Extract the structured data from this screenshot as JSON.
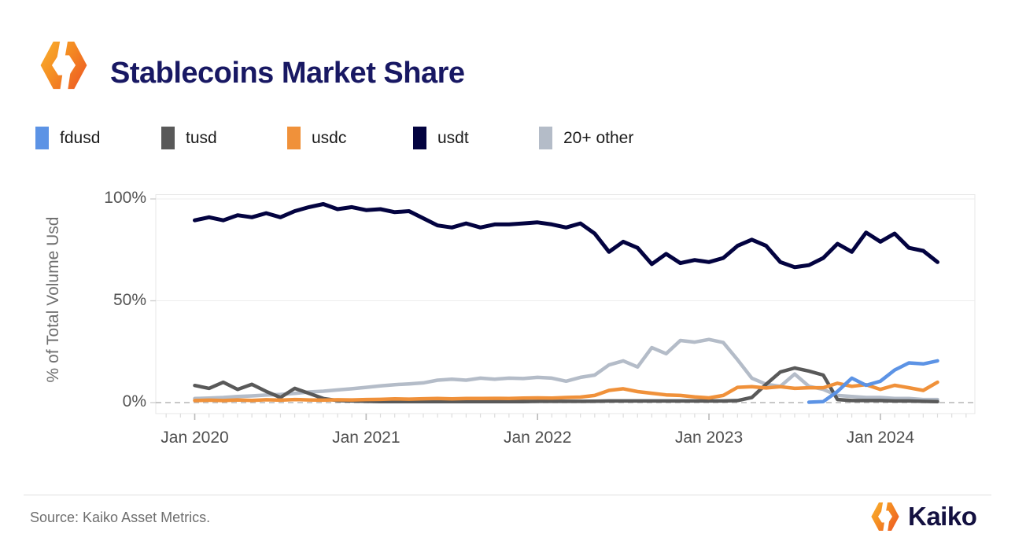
{
  "header": {
    "title": "Stablecoins Market Share"
  },
  "brand": {
    "icon": "kaiko-hexagon-icon"
  },
  "legend": [
    {
      "label": "fdusd",
      "color": "#5c93e5"
    },
    {
      "label": "tusd",
      "color": "#595959"
    },
    {
      "label": "usdc",
      "color": "#f0913a"
    },
    {
      "label": "usdt",
      "color": "#030340"
    },
    {
      "label": "20+ other",
      "color": "#b4bcc8"
    }
  ],
  "chart_data": {
    "type": "line",
    "title": "Stablecoins Market Share",
    "xlabel": "",
    "ylabel": "% of Total Volume Usd",
    "ylim": [
      0,
      100
    ],
    "yticks": [
      "0%",
      "50%",
      "100%"
    ],
    "xticks": [
      "Jan 2020",
      "Jan 2021",
      "Jan 2022",
      "Jan 2023",
      "Jan 2024"
    ],
    "x_start": "2020-01",
    "x_end": "2024-05",
    "x_step": "month",
    "grid": "horizontal, zero line dashed",
    "legend_position": "top",
    "series": [
      {
        "name": "fdusd",
        "color": "#5c93e5",
        "values": [
          null,
          null,
          null,
          null,
          null,
          null,
          null,
          null,
          null,
          null,
          null,
          null,
          null,
          null,
          null,
          null,
          null,
          null,
          null,
          null,
          null,
          null,
          null,
          null,
          null,
          null,
          null,
          null,
          null,
          null,
          null,
          null,
          null,
          null,
          null,
          null,
          null,
          null,
          null,
          null,
          null,
          null,
          null,
          0.2,
          0.5,
          5.5,
          12,
          8.5,
          10.5,
          16,
          19.5,
          19,
          20.5
        ]
      },
      {
        "name": "tusd",
        "color": "#595959",
        "values": [
          8.4,
          7,
          10,
          6.5,
          9,
          5.5,
          2.5,
          7,
          4.5,
          2,
          1,
          0.8,
          0.6,
          0.5,
          0.5,
          0.5,
          0.5,
          0.5,
          0.5,
          0.5,
          0.5,
          0.5,
          0.5,
          0.5,
          0.6,
          0.6,
          0.6,
          0.6,
          0.7,
          0.8,
          0.8,
          0.8,
          0.8,
          0.8,
          0.8,
          0.8,
          0.8,
          0.8,
          1,
          2.5,
          9,
          15,
          17,
          15.5,
          13.5,
          1.5,
          1,
          1,
          1,
          0.8,
          0.8,
          0.6,
          0.5
        ]
      },
      {
        "name": "usdc",
        "color": "#f0913a",
        "values": [
          1,
          1.2,
          1,
          1.3,
          1.1,
          1.4,
          1.2,
          1.5,
          1.3,
          1.2,
          1.4,
          1.3,
          1.5,
          1.6,
          1.8,
          1.7,
          1.9,
          2,
          1.8,
          2,
          2,
          2.1,
          2,
          2.2,
          2.3,
          2.2,
          2.5,
          2.7,
          3.5,
          6,
          6.8,
          5.4,
          4.6,
          3.8,
          3.5,
          2.8,
          2.3,
          3.5,
          7.5,
          7.8,
          7.2,
          7.8,
          7,
          7.3,
          7.3,
          9.5,
          8,
          8.8,
          6.5,
          8.5,
          7.3,
          6,
          10
        ]
      },
      {
        "name": "usdt",
        "color": "#030340",
        "values": [
          89.5,
          91,
          89.5,
          92,
          91,
          93,
          91,
          94,
          96,
          97.5,
          95,
          96,
          94.5,
          95,
          93.5,
          94,
          90.5,
          87,
          86,
          88,
          86,
          87.5,
          87.5,
          88,
          88.5,
          87.5,
          86,
          88,
          83,
          74,
          79,
          76,
          68,
          73,
          68.5,
          70,
          69,
          71,
          77,
          80,
          77,
          69,
          66.5,
          67.5,
          71,
          78,
          74,
          83.5,
          79,
          83,
          76,
          74.5,
          69
        ]
      },
      {
        "name": "20+ other",
        "color": "#b4bcc8",
        "values": [
          2,
          2.2,
          2.5,
          3,
          3.3,
          3.7,
          4,
          4.5,
          5.2,
          5.6,
          6.2,
          6.8,
          7.5,
          8.2,
          8.8,
          9.2,
          9.7,
          11,
          11.5,
          11,
          12,
          11.5,
          12,
          11.8,
          12.4,
          12,
          10.5,
          12.4,
          13.5,
          18.5,
          20.5,
          17.5,
          27,
          24,
          30.5,
          29.7,
          31,
          29.5,
          21,
          12,
          9,
          8,
          14,
          8,
          6.5,
          3.5,
          3,
          2.5,
          2.5,
          2,
          2,
          1.5,
          1.5
        ]
      }
    ]
  },
  "footer": {
    "source": "Source: Kaiko Asset Metrics.",
    "logo_text": "Kaiko",
    "logo_icon": "kaiko-hexagon-icon"
  }
}
